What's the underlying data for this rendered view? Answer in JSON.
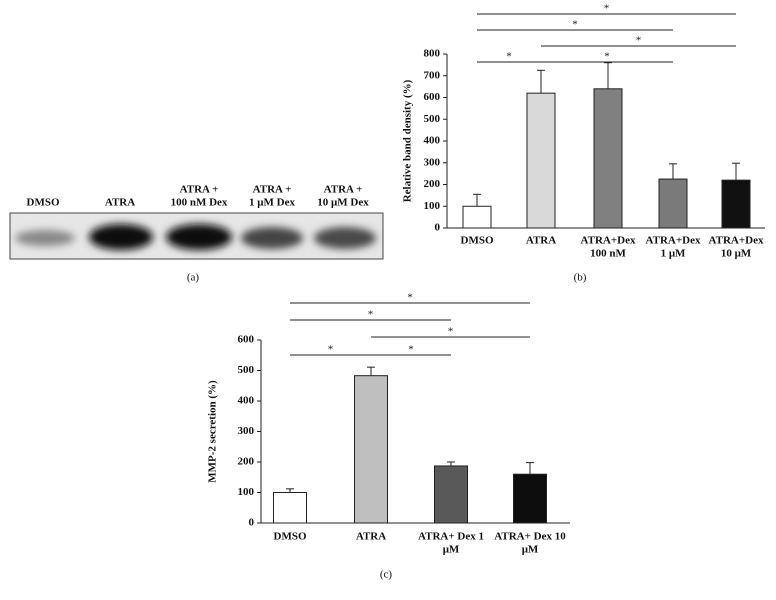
{
  "blot": {
    "lanes": [
      [
        "DMSO"
      ],
      [
        "ATRA"
      ],
      [
        "ATRA +",
        "100 nM Dex"
      ],
      [
        "ATRA +",
        "1 μM Dex"
      ],
      [
        "ATRA +",
        "10 μM Dex"
      ]
    ],
    "caption": "(a)"
  },
  "chart_data": [
    {
      "type": "bar",
      "caption": "(b)",
      "y_label": "Relative band density (%)",
      "categories": [
        [
          "DMSO"
        ],
        [
          "ATRA"
        ],
        [
          "ATRA+Dex",
          "100 nM"
        ],
        [
          "ATRA+Dex",
          "1 μM"
        ],
        [
          "ATRA+Dex",
          "10 μM"
        ]
      ],
      "values": [
        100,
        620,
        640,
        225,
        220
      ],
      "errors": [
        55,
        105,
        120,
        70,
        78
      ],
      "colors": [
        "#ffffff",
        "#d9d9d9",
        "#808080",
        "#7a7a7a",
        "#111111"
      ],
      "ylim": [
        0,
        800
      ],
      "yticks": [
        0,
        100,
        200,
        300,
        400,
        500,
        600,
        700,
        800
      ],
      "annotations": [
        "*",
        "*",
        "*",
        "*",
        "*"
      ]
    },
    {
      "type": "bar",
      "caption": "(c)",
      "y_label": "MMP-2 secretion (%)",
      "categories": [
        [
          "DMSO"
        ],
        [
          "ATRA"
        ],
        [
          "ATRA+ Dex 1",
          "μM"
        ],
        [
          "ATRA+ Dex 10",
          "μM"
        ]
      ],
      "values": [
        100,
        483,
        187,
        160
      ],
      "errors": [
        12,
        28,
        13,
        38
      ],
      "colors": [
        "#ffffff",
        "#bfbfbf",
        "#595959",
        "#0d0d0d"
      ],
      "ylim": [
        0,
        600
      ],
      "yticks": [
        0,
        100,
        200,
        300,
        400,
        500,
        600
      ],
      "annotations": [
        "*",
        "*",
        "*",
        "*",
        "*"
      ]
    }
  ]
}
